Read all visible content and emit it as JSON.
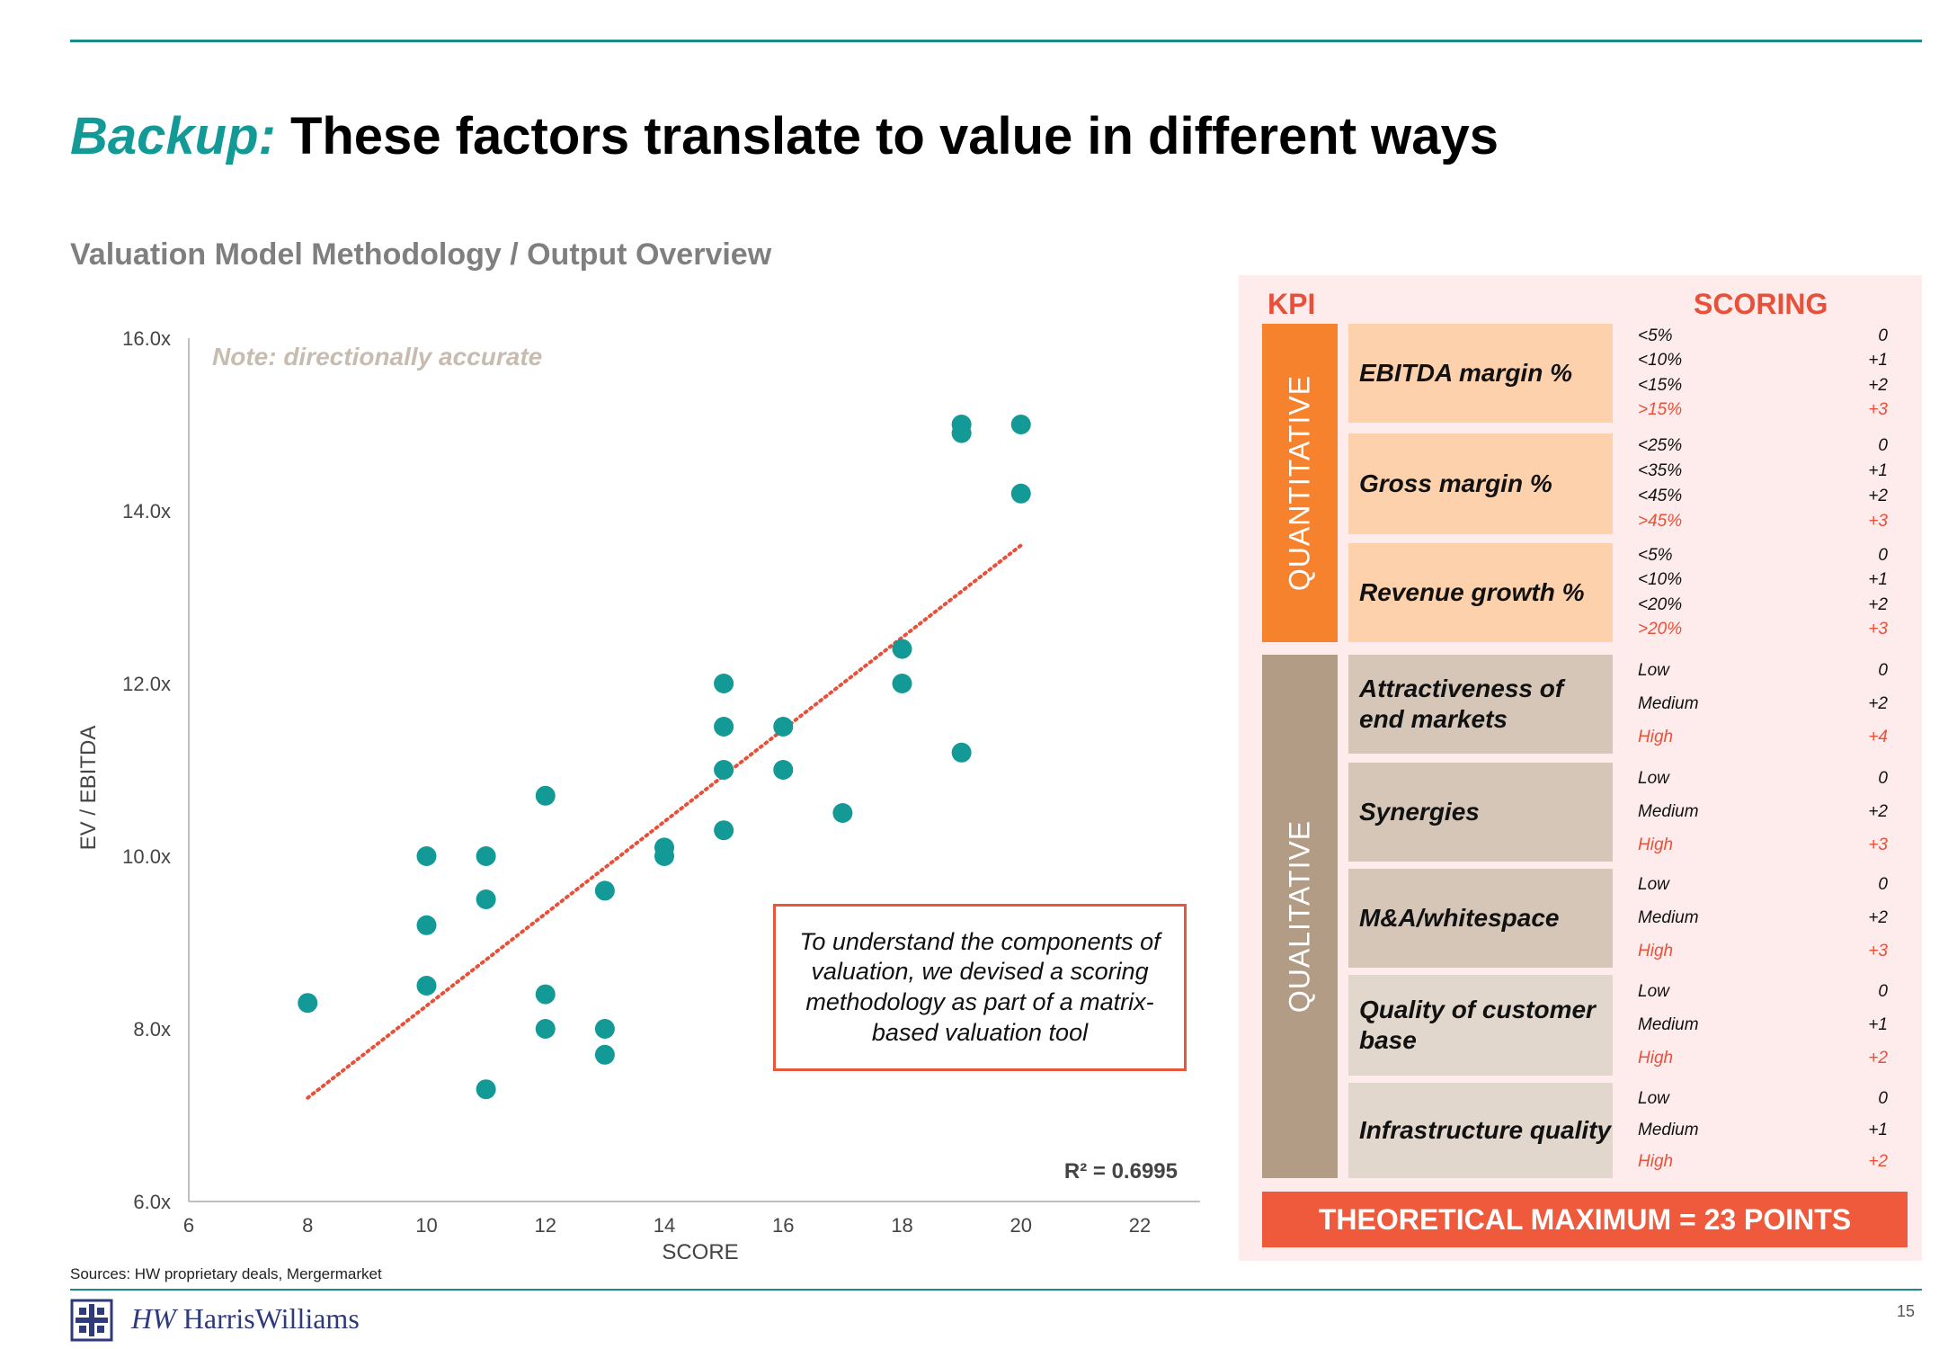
{
  "header": {
    "title_accent": "Backup:",
    "title_rest": " These factors translate to value in different ways",
    "subtitle": "Valuation Model Methodology / Output Overview"
  },
  "chart_data": {
    "type": "scatter",
    "title": "",
    "xlabel": "SCORE",
    "ylabel": "EV / EBITDA",
    "xlim": [
      6,
      22
    ],
    "ylim": [
      6,
      16
    ],
    "x_ticks": [
      "6",
      "8",
      "10",
      "12",
      "14",
      "16",
      "18",
      "20",
      "22"
    ],
    "y_ticks": [
      "6.0x",
      "8.0x",
      "10.0x",
      "12.0x",
      "14.0x",
      "16.0x"
    ],
    "note": "Note: directionally accurate",
    "r_squared": "R² = 0.6995",
    "trendline": {
      "x": [
        8,
        20
      ],
      "y": [
        7.2,
        13.6
      ]
    },
    "points": [
      {
        "x": 8,
        "y": 8.3
      },
      {
        "x": 10,
        "y": 10.0
      },
      {
        "x": 10,
        "y": 9.2
      },
      {
        "x": 10,
        "y": 8.5
      },
      {
        "x": 11,
        "y": 10.0
      },
      {
        "x": 11,
        "y": 9.5
      },
      {
        "x": 11,
        "y": 7.3
      },
      {
        "x": 12,
        "y": 10.7
      },
      {
        "x": 12,
        "y": 8.4
      },
      {
        "x": 12,
        "y": 8.0
      },
      {
        "x": 13,
        "y": 9.6
      },
      {
        "x": 13,
        "y": 8.0
      },
      {
        "x": 13,
        "y": 7.7
      },
      {
        "x": 14,
        "y": 10.1
      },
      {
        "x": 14,
        "y": 10.0
      },
      {
        "x": 15,
        "y": 12.0
      },
      {
        "x": 15,
        "y": 11.5
      },
      {
        "x": 15,
        "y": 11.0
      },
      {
        "x": 15,
        "y": 10.3
      },
      {
        "x": 16,
        "y": 11.5
      },
      {
        "x": 16,
        "y": 11.0
      },
      {
        "x": 17,
        "y": 10.5
      },
      {
        "x": 18,
        "y": 12.4
      },
      {
        "x": 18,
        "y": 12.0
      },
      {
        "x": 19,
        "y": 15.0
      },
      {
        "x": 19,
        "y": 14.9
      },
      {
        "x": 19,
        "y": 11.2
      },
      {
        "x": 20,
        "y": 15.0
      },
      {
        "x": 20,
        "y": 14.2
      }
    ],
    "colors": {
      "points": "#139a97",
      "trendline": "#e8503a",
      "axis": "#bfbfbf",
      "note": "#c8bcb0"
    }
  },
  "callout": "To understand the components of valuation, we devised a scoring methodology as part of a matrix-based valuation tool",
  "sources": "Sources: HW proprietary deals, Mergermarket",
  "footer": {
    "logo_text": "HarrisWilliams",
    "logo_mark": "HW",
    "page_number": "15"
  },
  "panel": {
    "kpi_header": "KPI",
    "scoring_header": "SCORING",
    "quantitative_label": "QUANTITATIVE",
    "qualitative_label": "QUALITATIVE",
    "theoretical_max": "THEORETICAL MAXIMUM = 23 POINTS",
    "kpis": [
      {
        "name": "EBITDA margin %",
        "scores": [
          [
            "<5%",
            "0"
          ],
          [
            "<10%",
            "+1"
          ],
          [
            "<15%",
            "+2"
          ],
          [
            ">15%",
            "+3"
          ]
        ]
      },
      {
        "name": "Gross margin %",
        "scores": [
          [
            "<25%",
            "0"
          ],
          [
            "<35%",
            "+1"
          ],
          [
            "<45%",
            "+2"
          ],
          [
            ">45%",
            "+3"
          ]
        ]
      },
      {
        "name": "Revenue growth %",
        "scores": [
          [
            "<5%",
            "0"
          ],
          [
            "<10%",
            "+1"
          ],
          [
            "<20%",
            "+2"
          ],
          [
            ">20%",
            "+3"
          ]
        ]
      },
      {
        "name": "Attractiveness of end markets",
        "scores": [
          [
            "Low",
            "0"
          ],
          [
            "Medium",
            "+2"
          ],
          [
            "High",
            "+4"
          ]
        ]
      },
      {
        "name": "Synergies",
        "scores": [
          [
            "Low",
            "0"
          ],
          [
            "Medium",
            "+2"
          ],
          [
            "High",
            "+3"
          ]
        ]
      },
      {
        "name": "M&A/whitespace",
        "scores": [
          [
            "Low",
            "0"
          ],
          [
            "Medium",
            "+2"
          ],
          [
            "High",
            "+3"
          ]
        ]
      },
      {
        "name": "Quality of customer base",
        "scores": [
          [
            "Low",
            "0"
          ],
          [
            "Medium",
            "+1"
          ],
          [
            "High",
            "+2"
          ]
        ]
      },
      {
        "name": "Infrastructure quality",
        "scores": [
          [
            "Low",
            "0"
          ],
          [
            "Medium",
            "+1"
          ],
          [
            "High",
            "+2"
          ]
        ]
      }
    ]
  }
}
